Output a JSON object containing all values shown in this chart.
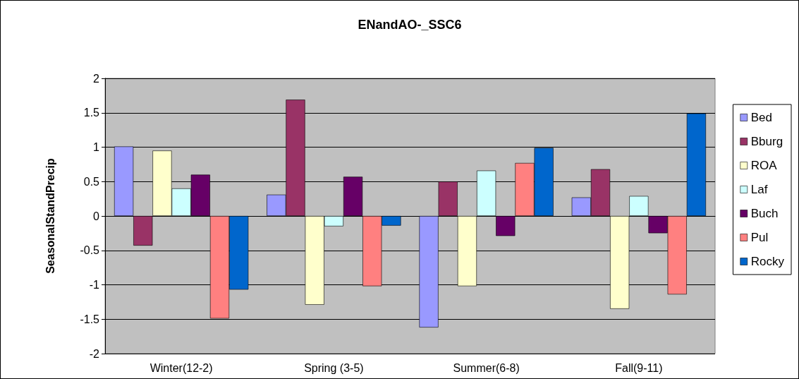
{
  "chart_data": {
    "type": "bar",
    "title": "ENandAO-_SSC6",
    "ylabel": "SeasonalStandPrecip",
    "categories": [
      "Winter(12-2)",
      "Spring (3-5)",
      "Summer(6-8)",
      "Fall(9-11)"
    ],
    "series": [
      {
        "name": "Bed",
        "color": "#9999ff",
        "values": [
          1.01,
          0.31,
          -1.62,
          0.27
        ]
      },
      {
        "name": "Bburg",
        "color": "#993366",
        "values": [
          -0.43,
          1.69,
          0.5,
          0.68
        ]
      },
      {
        "name": "ROA",
        "color": "#ffffcc",
        "values": [
          0.95,
          -1.29,
          -1.02,
          -1.35
        ]
      },
      {
        "name": "Laf",
        "color": "#ccffff",
        "values": [
          0.4,
          -0.15,
          0.66,
          0.29
        ]
      },
      {
        "name": "Buch",
        "color": "#660066",
        "values": [
          0.6,
          0.57,
          -0.29,
          -0.25
        ]
      },
      {
        "name": "Pul",
        "color": "#ff8080",
        "values": [
          -1.49,
          -1.02,
          0.77,
          -1.14
        ]
      },
      {
        "name": "Rocky",
        "color": "#0066cc",
        "values": [
          -1.07,
          -0.14,
          0.99,
          1.49
        ]
      }
    ],
    "ylim": [
      -2,
      2
    ],
    "yticks": [
      -2,
      -1.5,
      -1,
      -0.5,
      0,
      0.5,
      1,
      1.5,
      2
    ],
    "grid": "y",
    "legend": "right"
  }
}
